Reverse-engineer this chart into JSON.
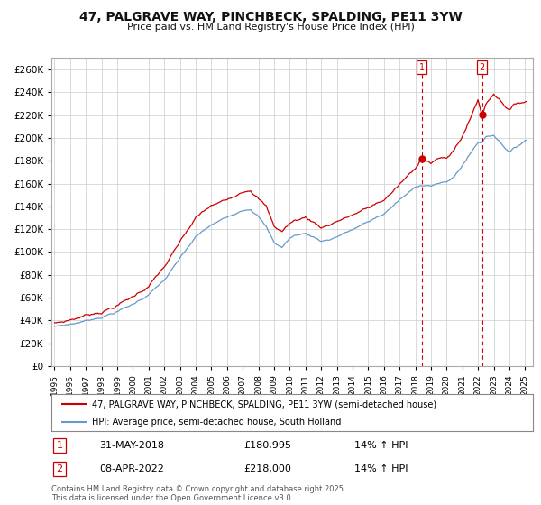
{
  "title": "47, PALGRAVE WAY, PINCHBECK, SPALDING, PE11 3YW",
  "subtitle": "Price paid vs. HM Land Registry's House Price Index (HPI)",
  "ylim": [
    0,
    270000
  ],
  "yticks": [
    0,
    20000,
    40000,
    60000,
    80000,
    100000,
    120000,
    140000,
    160000,
    180000,
    200000,
    220000,
    240000,
    260000
  ],
  "xlim_start": 1994.8,
  "xlim_end": 2025.5,
  "background_color": "#ffffff",
  "grid_color": "#cccccc",
  "property_color": "#cc0000",
  "hpi_color": "#6699cc",
  "legend_property": "47, PALGRAVE WAY, PINCHBECK, SPALDING, PE11 3YW (semi-detached house)",
  "legend_hpi": "HPI: Average price, semi-detached house, South Holland",
  "transaction1_date": "31-MAY-2018",
  "transaction1_price": "£180,995",
  "transaction1_info": "14% ↑ HPI",
  "transaction1_year": 2018.42,
  "transaction1_value": 180995,
  "transaction2_date": "08-APR-2022",
  "transaction2_price": "£218,000",
  "transaction2_info": "14% ↑ HPI",
  "transaction2_year": 2022.27,
  "transaction2_value": 218000,
  "footer": "Contains HM Land Registry data © Crown copyright and database right 2025.\nThis data is licensed under the Open Government Licence v3.0."
}
